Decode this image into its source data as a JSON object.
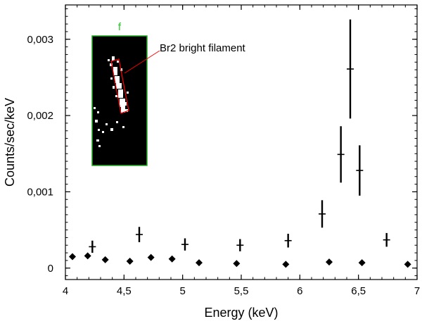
{
  "chart_data": {
    "type": "scatter",
    "xlabel": "Energy (keV)",
    "ylabel": "Counts/sec/keV",
    "xlim": [
      4.0,
      7.0
    ],
    "ylim": [
      -0.00015,
      0.00345
    ],
    "x_ticks": [
      4,
      4.5,
      5,
      5.5,
      6,
      6.5,
      7
    ],
    "x_tick_labels": [
      "4",
      "4,5",
      "5",
      "5,5",
      "6",
      "6,5",
      "7"
    ],
    "y_ticks": [
      0,
      0.001,
      0.002,
      0.003
    ],
    "y_tick_labels": [
      "0",
      "0,001",
      "0,002",
      "0,003"
    ],
    "grid": false,
    "series": [
      {
        "marker": "cross-errorbar",
        "color": "#000000",
        "points": [
          {
            "x": 4.23,
            "y": 0.00028,
            "yerr": 8e-05
          },
          {
            "x": 4.63,
            "y": 0.00044,
            "yerr": 0.0001
          },
          {
            "x": 5.02,
            "y": 0.00031,
            "yerr": 8e-05
          },
          {
            "x": 5.49,
            "y": 0.0003,
            "yerr": 8e-05
          },
          {
            "x": 5.9,
            "y": 0.00036,
            "yerr": 9e-05
          },
          {
            "x": 6.19,
            "y": 0.00071,
            "yerr": 0.00018
          },
          {
            "x": 6.35,
            "y": 0.00149,
            "yerr": 0.00037
          },
          {
            "x": 6.43,
            "y": 0.00261,
            "yerr": 0.00065
          },
          {
            "x": 6.51,
            "y": 0.00128,
            "yerr": 0.00033
          },
          {
            "x": 6.74,
            "y": 0.00037,
            "yerr": 9e-05
          }
        ]
      },
      {
        "marker": "diamond",
        "color": "#000000",
        "points": [
          {
            "x": 4.06,
            "y": 0.00015
          },
          {
            "x": 4.19,
            "y": 0.00016
          },
          {
            "x": 4.34,
            "y": 0.00011
          },
          {
            "x": 4.55,
            "y": 9e-05
          },
          {
            "x": 4.73,
            "y": 0.00014
          },
          {
            "x": 4.91,
            "y": 0.00012
          },
          {
            "x": 5.14,
            "y": 7e-05
          },
          {
            "x": 5.46,
            "y": 6e-05
          },
          {
            "x": 5.88,
            "y": 5e-05
          },
          {
            "x": 6.25,
            "y": 8e-05
          },
          {
            "x": 6.53,
            "y": 7e-05
          },
          {
            "x": 6.92,
            "y": 5e-05
          }
        ]
      }
    ],
    "inset": {
      "panel_letter": "f",
      "letter_color": "#22cc22",
      "border_color": "#22aa22",
      "background": "#000000",
      "highlight_color": "#ff0000",
      "label": "Br2 bright filament"
    }
  }
}
